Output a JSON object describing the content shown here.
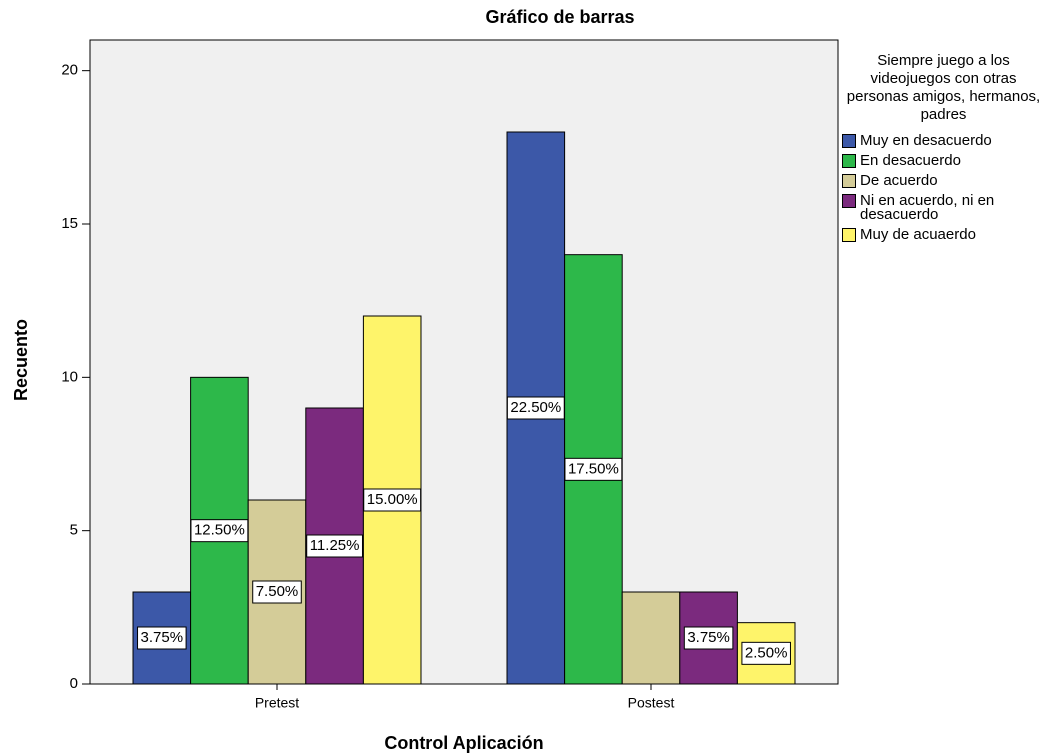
{
  "chart_data": {
    "type": "bar",
    "title": "Gráfico de barras",
    "x_label": "Control Aplicación",
    "y_label": "Recuento",
    "legend_title": "Siempre juego a los videojuegos con otras personas amigos, hermanos, padres",
    "categories": [
      "Pretest",
      "Postest"
    ],
    "series": [
      {
        "name": "Muy en desacuerdo",
        "color": "#3c58a8",
        "values": [
          3,
          18
        ],
        "value_labels": [
          "3.75%",
          "22.50%"
        ]
      },
      {
        "name": "En desacuerdo",
        "color": "#2db84a",
        "values": [
          10,
          14
        ],
        "value_labels": [
          "12.50%",
          "17.50%"
        ]
      },
      {
        "name": "De acuerdo",
        "color": "#d4cc98",
        "values": [
          6,
          3
        ],
        "value_labels": [
          "7.50%",
          null
        ]
      },
      {
        "name": "Ni en acuerdo, ni en desacuerdo",
        "color": "#7b2a7e",
        "values": [
          9,
          3
        ],
        "value_labels": [
          "11.25%",
          "3.75%"
        ]
      },
      {
        "name": "Muy de acuaerdo",
        "color": "#fef46a",
        "values": [
          12,
          2
        ],
        "value_labels": [
          "15.00%",
          "2.50%"
        ]
      }
    ],
    "ylim": [
      0,
      21
    ],
    "yticks": [
      0,
      5,
      10,
      15,
      20
    ],
    "legend": "right"
  }
}
